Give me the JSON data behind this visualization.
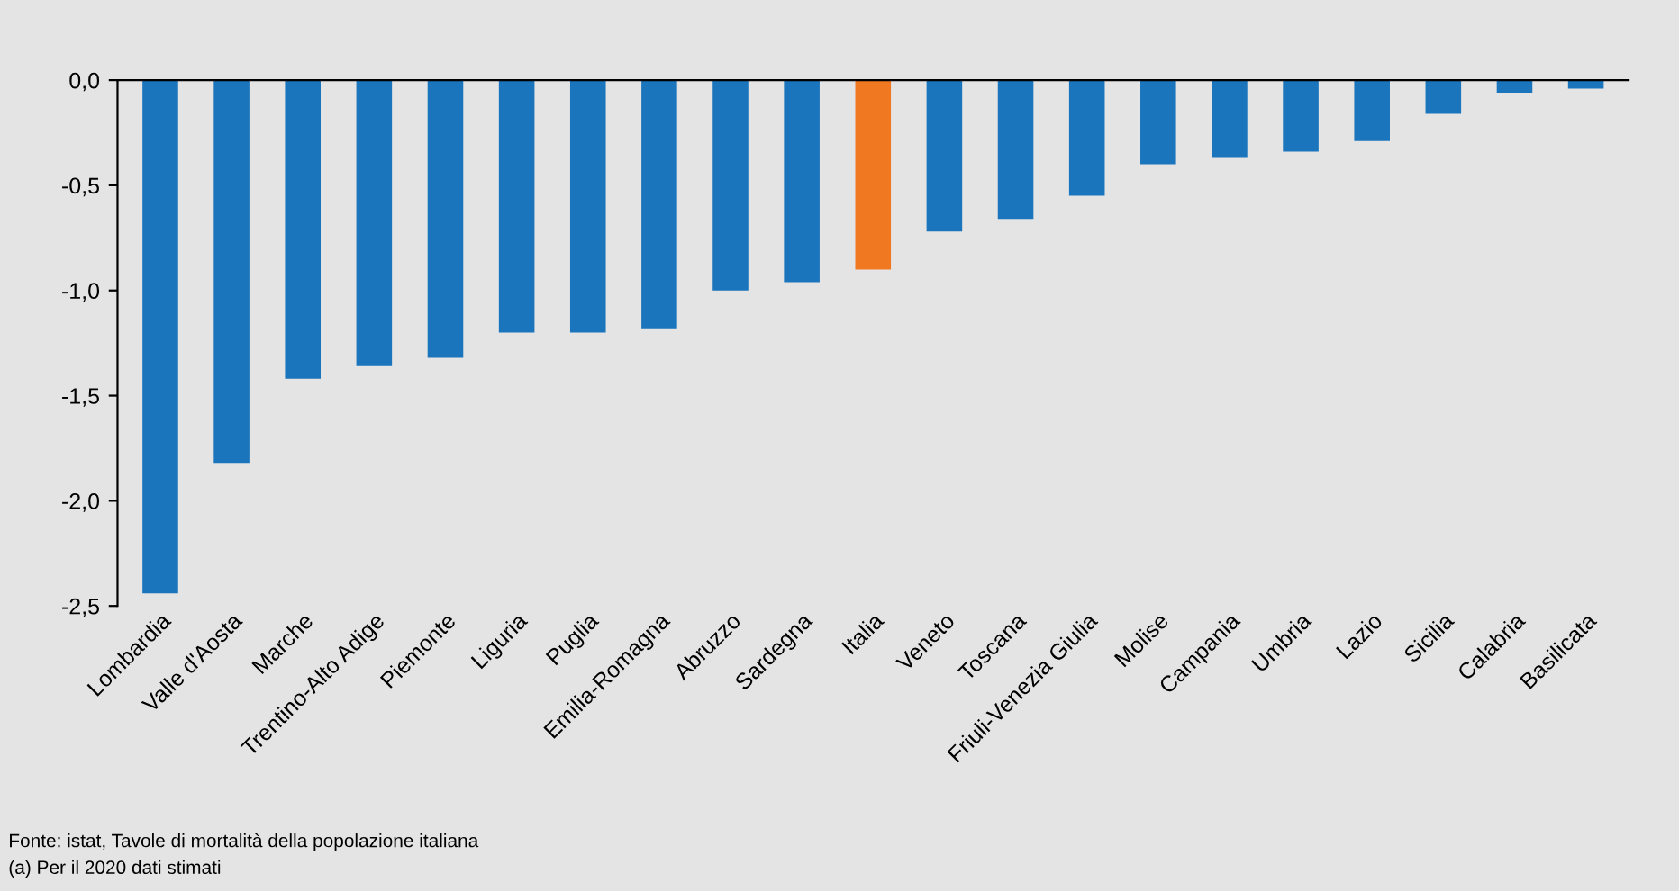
{
  "chart_data": {
    "type": "bar",
    "categories": [
      "Lombardia",
      "Valle d'Aosta",
      "Marche",
      "Trentino-Alto Adige",
      "Piemonte",
      "Liguria",
      "Puglia",
      "Emilia-Romagna",
      "Abruzzo",
      "Sardegna",
      "Italia",
      "Veneto",
      "Toscana",
      "Friuli-Venezia Giulia",
      "Molise",
      "Campania",
      "Umbria",
      "Lazio",
      "Sicilia",
      "Calabria",
      "Basilicata"
    ],
    "values": [
      -2.44,
      -1.82,
      -1.42,
      -1.36,
      -1.32,
      -1.2,
      -1.2,
      -1.18,
      -1.0,
      -0.96,
      -0.9,
      -0.72,
      -0.66,
      -0.55,
      -0.4,
      -0.37,
      -0.34,
      -0.29,
      -0.16,
      -0.06,
      -0.04
    ],
    "colors": [
      "#1a75bc",
      "#1a75bc",
      "#1a75bc",
      "#1a75bc",
      "#1a75bc",
      "#1a75bc",
      "#1a75bc",
      "#1a75bc",
      "#1a75bc",
      "#1a75bc",
      "#f07820",
      "#1a75bc",
      "#1a75bc",
      "#1a75bc",
      "#1a75bc",
      "#1a75bc",
      "#1a75bc",
      "#1a75bc",
      "#1a75bc",
      "#1a75bc",
      "#1a75bc"
    ],
    "ylim": [
      -2.5,
      0
    ],
    "yticks": [
      {
        "value": 0,
        "label": "0,0"
      },
      {
        "value": -0.5,
        "label": "-0,5"
      },
      {
        "value": -1,
        "label": "-1,0"
      },
      {
        "value": -1.5,
        "label": "-1,5"
      },
      {
        "value": -2,
        "label": "-2,0"
      },
      {
        "value": -2.5,
        "label": "-2,5"
      }
    ],
    "grid": false,
    "annotations": [
      "Fonte: istat, Tavole di mortalità della popolazione italiana",
      "(a) Per il 2020 dati stimati"
    ]
  }
}
